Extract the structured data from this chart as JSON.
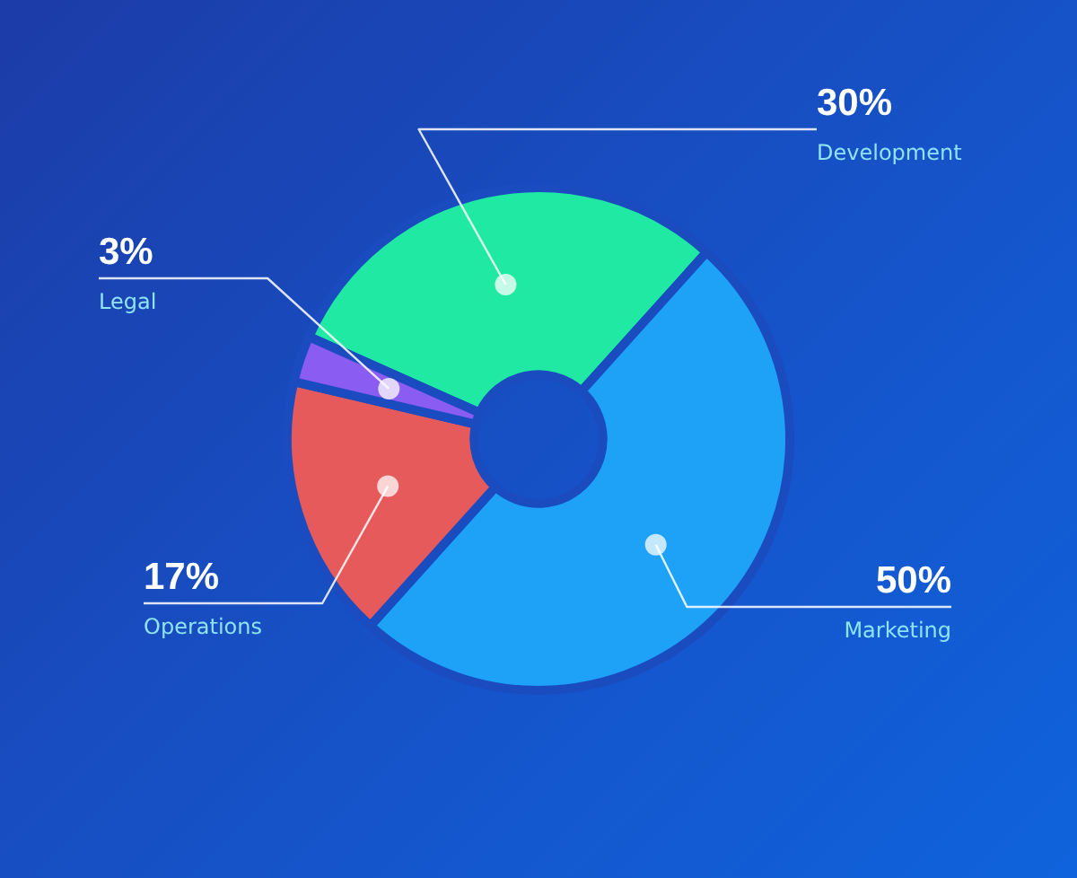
{
  "chart_data": {
    "type": "donut",
    "categories": [
      "Development",
      "Marketing",
      "Operations",
      "Legal"
    ],
    "values": [
      30,
      50,
      17,
      3
    ],
    "colors": [
      "#1fe9a2",
      "#1ea2f7",
      "#e65a5c",
      "#8b5cf2"
    ],
    "value_labels": [
      "30%",
      "50%",
      "17%",
      "3%"
    ],
    "legend": false
  }
}
